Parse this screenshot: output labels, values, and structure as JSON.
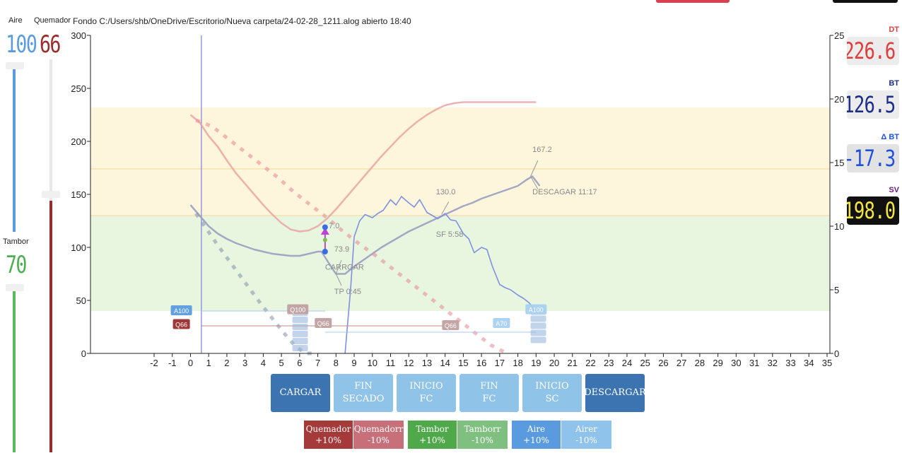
{
  "window": {
    "title": "Fondo C:/Users/shb/OneDrive/Escritorio/Nueva carpeta/24-02-28_1211.alog abierto 18:40"
  },
  "sliders": {
    "aire": {
      "label": "Aire",
      "value": "100",
      "level": 1.0,
      "color": "#5a9be0"
    },
    "quemador": {
      "label": "Quemador",
      "value": "66",
      "level": 0.66,
      "color": "#9b2c2c"
    },
    "tambor": {
      "label": "Tambor",
      "value": "70",
      "level": 0.7,
      "color": "#4caf50"
    }
  },
  "lcds": {
    "dt": {
      "label": "DT",
      "value": "226.6",
      "color": "#e03c3c"
    },
    "bt": {
      "label": "BT",
      "value": "126.5",
      "color": "#1c2e8a"
    },
    "delta_bt": {
      "label": "Δ BT",
      "value": "-17.3",
      "color": "#2050e0"
    },
    "sv": {
      "label": "SV",
      "value": "198.0",
      "color": "#f5e642"
    }
  },
  "chart_data": {
    "type": "line",
    "x_ticks": [
      "-2",
      "-1",
      "0",
      "1",
      "2",
      "3",
      "4",
      "5",
      "6",
      "7",
      "8",
      "9",
      "10",
      "11",
      "12",
      "13",
      "14",
      "15",
      "16",
      "17",
      "18",
      "19",
      "20",
      "21",
      "22",
      "23",
      "24",
      "25",
      "26",
      "27",
      "28",
      "29",
      "30",
      "31",
      "32",
      "33",
      "34",
      "35"
    ],
    "y_left_ticks": [
      "0",
      "50",
      "100",
      "150",
      "200",
      "250",
      "300"
    ],
    "y_right_ticks": [
      "0",
      "5",
      "10",
      "15",
      "20",
      "25"
    ],
    "xlim": [
      -2,
      35
    ],
    "ylim_left": [
      0,
      300
    ],
    "ylim_right": [
      0,
      25
    ],
    "bands": [
      {
        "from": 40,
        "to": 130,
        "color": "#e8f6e0"
      },
      {
        "from": 130,
        "to": 232,
        "color": "#fdf6dc"
      }
    ],
    "series": [
      {
        "color": "#e8a0a0",
        "x": [
          0,
          0.5,
          1,
          1.5,
          2,
          2.5,
          3,
          3.5,
          4,
          4.5,
          5,
          5.5,
          6,
          6.5,
          7,
          7.5,
          8,
          8.5,
          9,
          9.5,
          10,
          10.5,
          11,
          11.5,
          12,
          12.5,
          13,
          13.5,
          14,
          14.5,
          15,
          15.5,
          16,
          16.5,
          17,
          17.5,
          18,
          18.5,
          19
        ],
        "y": [
          225,
          218,
          205,
          195,
          182,
          170,
          160,
          150,
          140,
          131,
          123,
          117,
          115,
          116,
          120,
          127,
          136,
          146,
          156,
          166,
          176,
          186,
          195,
          204,
          212,
          219,
          225,
          230,
          234,
          236,
          237,
          237,
          237,
          237,
          237,
          237,
          237,
          237,
          237
        ]
      },
      {
        "color": "#9aa0c0",
        "x": [
          0,
          0.5,
          1,
          1.5,
          2,
          2.5,
          3,
          3.5,
          4,
          4.5,
          5,
          5.5,
          6,
          6.5,
          7,
          7.2,
          7.5,
          7.8,
          8,
          8.5,
          9,
          9.5,
          10,
          10.5,
          11,
          11.5,
          12,
          12.5,
          13,
          13.5,
          14,
          14.5,
          15,
          15.5,
          16,
          16.5,
          17,
          17.5,
          18,
          18.5,
          18.8,
          19.2
        ],
        "y": [
          140,
          130,
          120,
          113,
          108,
          104,
          101,
          98,
          96,
          94,
          93,
          92,
          92,
          94,
          96,
          96,
          88,
          80,
          75,
          75,
          82,
          88,
          94,
          100,
          105,
          110,
          115,
          119,
          123,
          127,
          131,
          135,
          139,
          142,
          146,
          149,
          152,
          155,
          158,
          164,
          167,
          158
        ]
      },
      {
        "color": "#8090e0",
        "x": [
          8.5,
          8.8,
          9,
          9.3,
          9.6,
          10,
          10.3,
          10.6,
          11,
          11.3,
          11.6,
          12,
          12.3,
          12.6,
          13,
          13.3,
          13.6,
          14,
          14.3,
          14.6,
          15,
          15.3,
          15.6,
          16,
          16.3,
          16.6,
          17,
          17.3,
          17.6,
          18,
          18.3,
          18.6,
          19
        ],
        "y": [
          0,
          60,
          110,
          125,
          131,
          128,
          132,
          135,
          145,
          140,
          148,
          142,
          138,
          145,
          133,
          130,
          127,
          132,
          126,
          125,
          113,
          108,
          95,
          100,
          98,
          82,
          65,
          62,
          60,
          55,
          52,
          48,
          40
        ]
      },
      {
        "color": "#7f8fa8",
        "x": [
          0.3,
          0.9,
          1.5,
          2.1,
          2.7,
          3.3,
          3.9,
          4.5,
          5.1,
          5.7,
          6.3,
          6.9
        ],
        "y": [
          132,
          117,
          102,
          88,
          74,
          60,
          46,
          33,
          20,
          8,
          0,
          0
        ]
      },
      {
        "color": "#e8909a",
        "x": [
          0.3,
          1.2,
          2.1,
          3,
          3.9,
          4.8,
          5.7,
          6.6,
          7.5,
          8.4,
          9.3,
          10.2,
          11.1,
          12,
          12.9,
          13.8,
          14.7,
          15.6,
          16.5,
          17.4
        ],
        "y": [
          220,
          214,
          202,
          190,
          178,
          166,
          152,
          140,
          128,
          115,
          103,
          92,
          80,
          68,
          56,
          44,
          32,
          20,
          8,
          0
        ]
      }
    ],
    "annotations": [
      {
        "text": "167.2",
        "x": 18.8,
        "y": 190
      },
      {
        "text": "DESCAGAR 11:17",
        "x": 18.8,
        "y": 150
      },
      {
        "text": "130.0",
        "x": 13.5,
        "y": 150
      },
      {
        "text": "SF 5:58",
        "x": 13.5,
        "y": 110
      },
      {
        "text": "73.9",
        "x": 7.9,
        "y": 96
      },
      {
        "text": "CARRGAR",
        "x": 7.4,
        "y": 79
      },
      {
        "text": "TP 0:45",
        "x": 7.9,
        "y": 56
      },
      {
        "text": "7.0",
        "x": 7.6,
        "y": 118
      }
    ],
    "event_tags": [
      {
        "text": "A100",
        "x": -0.5,
        "y": 40,
        "bg": "#5a9be0"
      },
      {
        "text": "Q66",
        "x": -0.5,
        "y": 27,
        "bg": "#9b2c2c"
      },
      {
        "text": "A70",
        "x": 17.1,
        "y": 28,
        "bg": "#a8d0f0"
      },
      {
        "text": "A100",
        "x": 19.0,
        "y": 41,
        "bg": "#a8d0f0"
      },
      {
        "text": "Q100",
        "x": 5.9,
        "y": 41,
        "bg": "#c0a0a0"
      },
      {
        "text": "Q66",
        "x": 7.3,
        "y": 28,
        "bg": "#c0a0a0"
      },
      {
        "text": "Q66",
        "x": 14.3,
        "y": 26,
        "bg": "#c0a0a0"
      }
    ]
  },
  "event_buttons": [
    {
      "line1": "CARGAR",
      "line2": "",
      "bg": "#3b74b0"
    },
    {
      "line1": "FIN",
      "line2": "SECADO",
      "bg": "#8fc3e8"
    },
    {
      "line1": "INICIO",
      "line2": "FC",
      "bg": "#8fc3e8"
    },
    {
      "line1": "FIN",
      "line2": "FC",
      "bg": "#8fc3e8"
    },
    {
      "line1": "INICIO",
      "line2": "SC",
      "bg": "#8fc3e8"
    },
    {
      "line1": "DESCARGAR",
      "line2": "",
      "bg": "#3b74b0"
    }
  ],
  "control_buttons": [
    {
      "line1": "Quemador",
      "line2": "+10%",
      "bg": "#a43a3a"
    },
    {
      "line1": "Quemadorr",
      "line2": "-10%",
      "bg": "#c8707a"
    },
    {
      "line1": "Tambor",
      "line2": "+10%",
      "bg": "#4fa84a"
    },
    {
      "line1": "Tamborr",
      "line2": "-10%",
      "bg": "#7fbf80"
    },
    {
      "line1": "Aire",
      "line2": "+10%",
      "bg": "#5a9be0"
    },
    {
      "line1": "Airer",
      "line2": "-10%",
      "bg": "#8fc3ec"
    }
  ]
}
